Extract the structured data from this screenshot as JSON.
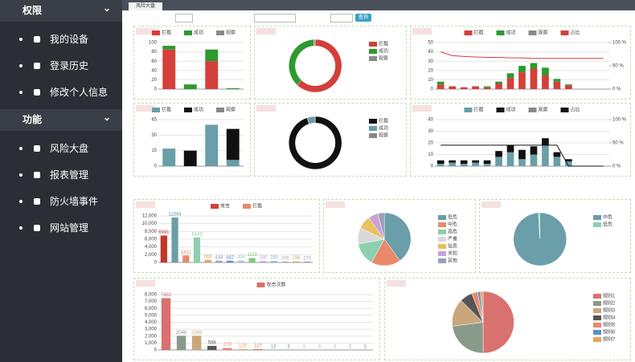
{
  "sidebar": {
    "sections": [
      {
        "title": "权限",
        "items": [
          "我的设备",
          "登录历史",
          "修改个人信息"
        ]
      },
      {
        "title": "功能",
        "items": [
          "风险大盘",
          "报表管理",
          "防火墙事件",
          "网站管理"
        ]
      }
    ]
  },
  "tab": "风险大盘",
  "toolbar": {
    "button": "查询"
  },
  "chart_data": [
    {
      "type": "bar",
      "categories": [
        null,
        null,
        null,
        null
      ],
      "series": [
        {
          "name": "拦截",
          "color": "#d43f3a",
          "values": [
            85,
            0,
            60,
            0
          ]
        },
        {
          "name": "成功",
          "color": "#2e9a2e",
          "values": [
            8,
            10,
            25,
            2
          ]
        },
        {
          "name": "观察",
          "color": "#888888",
          "values": [
            0,
            0,
            0,
            0
          ]
        }
      ],
      "ylim": [
        0,
        100
      ],
      "yticks": [
        0,
        20,
        40,
        60,
        80,
        100
      ]
    },
    {
      "type": "donut",
      "names": [
        "拦截",
        "成功",
        "观察"
      ],
      "colors": [
        "#d43f3a",
        "#2e9a2e",
        "#888888"
      ],
      "values": [
        62,
        37,
        1
      ]
    },
    {
      "type": "bar",
      "categories": [
        null,
        null,
        null,
        null,
        null,
        null,
        null,
        null,
        null,
        null,
        null,
        null,
        null,
        null,
        null
      ],
      "series": [
        {
          "name": "拦截",
          "color": "#d43f3a",
          "values": [
            5,
            3,
            2,
            3,
            2,
            6,
            12,
            18,
            22,
            15,
            8,
            4,
            0,
            0,
            0
          ]
        },
        {
          "name": "成功",
          "color": "#2e9a2e",
          "values": [
            3,
            0,
            0,
            0,
            1,
            2,
            5,
            7,
            6,
            8,
            3,
            1,
            0,
            0,
            0
          ]
        },
        {
          "name": "观察",
          "color": "#888888",
          "values": [
            0,
            0,
            0,
            0,
            0,
            0,
            0,
            0,
            0,
            0,
            0,
            0,
            0,
            0,
            0
          ]
        },
        {
          "name": "占比",
          "color": "#d43f3a",
          "axis": "y2",
          "values": [
            80,
            72,
            70,
            69,
            68,
            68,
            67,
            67,
            66,
            66,
            66,
            66,
            66,
            66,
            66
          ]
        }
      ],
      "ylim": [
        0,
        50
      ],
      "yticks": [
        0,
        10,
        20,
        30,
        40,
        50
      ],
      "y2lim": [
        0,
        100
      ],
      "y2ticks": [
        {
          "value": 0,
          "label": "0 %"
        },
        {
          "value": 50,
          "label": "50 %"
        },
        {
          "value": 100,
          "label": "100 %"
        }
      ]
    },
    {
      "type": "bar",
      "categories": [
        null,
        null,
        null,
        null
      ],
      "series": [
        {
          "name": "拦截",
          "color": "#6a9ea8",
          "values": [
            17,
            0,
            40,
            6
          ]
        },
        {
          "name": "成功",
          "color": "#111111",
          "values": [
            0,
            15,
            0,
            30
          ]
        },
        {
          "name": "观察",
          "color": "#888888",
          "values": [
            0,
            0,
            0,
            0
          ]
        }
      ],
      "ylim": [
        0,
        45
      ],
      "yticks": [
        0,
        15,
        30,
        45
      ]
    },
    {
      "type": "donut",
      "names": [
        "拦截",
        "成功",
        "观察"
      ],
      "colors": [
        "#111111",
        "#6a9ea8",
        "#888888"
      ],
      "values": [
        95,
        5,
        0
      ]
    },
    {
      "type": "bar",
      "categories": [
        null,
        null,
        null,
        null,
        null,
        null,
        null,
        null,
        null,
        null,
        null,
        null,
        null,
        null,
        null
      ],
      "series": [
        {
          "name": "拦截",
          "color": "#6a9ea8",
          "values": [
            2,
            3,
            2,
            3,
            2,
            8,
            12,
            6,
            10,
            18,
            8,
            4,
            0,
            0,
            0
          ]
        },
        {
          "name": "成功",
          "color": "#111111",
          "values": [
            3,
            2,
            3,
            2,
            3,
            5,
            6,
            8,
            7,
            6,
            4,
            2,
            0,
            0,
            0
          ]
        },
        {
          "name": "观察",
          "color": "#888888",
          "values": [
            0,
            0,
            0,
            0,
            0,
            0,
            0,
            0,
            0,
            0,
            0,
            0,
            0,
            0,
            0
          ]
        },
        {
          "name": "占比",
          "color": "#111111",
          "axis": "y2",
          "values": [
            45,
            45,
            45,
            45,
            45,
            45,
            45,
            45,
            45,
            45,
            45,
            0,
            0,
            0,
            0
          ]
        }
      ],
      "ylim": [
        0,
        40
      ],
      "yticks": [
        0,
        10,
        20,
        30,
        40
      ],
      "y2lim": [
        0,
        100
      ],
      "y2ticks": [
        {
          "value": 0,
          "label": "0 %"
        },
        {
          "value": 50,
          "label": "50 %"
        },
        {
          "value": 100,
          "label": "100 %"
        }
      ]
    },
    {
      "type": "bar",
      "categories": [
        null,
        null,
        null,
        null,
        null,
        null,
        null,
        null,
        null,
        null,
        null,
        null,
        null,
        null
      ],
      "legend": [
        {
          "name": "攻击",
          "color": "#d43f3a"
        },
        {
          "name": "拦截",
          "color": "#e8896a"
        }
      ],
      "colors": [
        "#c0392b",
        "#6a9ea8",
        "#e8896a",
        "#8ccfae",
        "#e8a35c",
        "#9aa0b8",
        "#5d8fc9",
        "#a8c6d8",
        "#7fc97f",
        "#c4a8d8",
        "#9ab0c0",
        "#b0b0b0",
        "#c0b080",
        "#a0a0c0"
      ],
      "values": [
        6941,
        11594,
        1811,
        6443,
        668,
        448,
        442,
        494,
        1119,
        380,
        380,
        266,
        296,
        270
      ],
      "ylim": [
        0,
        12000
      ],
      "yticks": [
        0,
        {
          "value": 2000,
          "label": "2,000"
        },
        {
          "value": 4000,
          "label": "4,000"
        },
        {
          "value": 6000,
          "label": "6,000"
        },
        {
          "value": 8000,
          "label": "8,000"
        },
        {
          "value": 10000,
          "label": "10,000"
        },
        {
          "value": 12000,
          "label": "12,000"
        }
      ]
    },
    {
      "type": "pie",
      "names": [
        "低危",
        "中危",
        "高危",
        "严重",
        "信息",
        "未知",
        "其他"
      ],
      "colors": [
        "#6a9ea8",
        "#e8896a",
        "#8ccfae",
        "#d9d9d9",
        "#e8c25c",
        "#c9a0d8",
        "#9aa0b8"
      ],
      "values": [
        40,
        18,
        14,
        10,
        8,
        6,
        4
      ]
    },
    {
      "type": "pie",
      "names": [
        "中危",
        "低危"
      ],
      "colors": [
        "#6a9ea8",
        "#8ccfae"
      ],
      "values": [
        99,
        1
      ]
    },
    {
      "type": "bar",
      "categories": [
        null,
        null,
        null,
        null,
        null,
        null,
        null,
        null,
        null,
        null,
        null,
        null,
        null,
        null
      ],
      "legend": [
        {
          "name": "攻击次数",
          "color": "#d9716e"
        }
      ],
      "colors": [
        "#d9716e",
        "#8a9a8a",
        "#c9a77a",
        "#555555",
        "#e8896a",
        "#e8a35c",
        "#d9716e",
        "#6a9ea8",
        "#5d8fc9",
        "#8ccfae",
        "#7fc97f",
        "#c4a8d8",
        "#6a9ea8",
        "#888888"
      ],
      "values": [
        7482,
        2046,
        2059,
        588,
        279,
        129,
        127,
        13,
        3,
        3,
        3,
        3,
        2,
        1
      ],
      "ylim": [
        0,
        8000
      ],
      "yticks": [
        0,
        {
          "value": 1000,
          "label": "1,000"
        },
        {
          "value": 2000,
          "label": "2,000"
        },
        {
          "value": 3000,
          "label": "3,000"
        },
        {
          "value": 4000,
          "label": "4,000"
        },
        {
          "value": 5000,
          "label": "5,000"
        },
        {
          "value": 6000,
          "label": "6,000"
        },
        {
          "value": 7000,
          "label": "7,000"
        },
        {
          "value": 8000,
          "label": "8,000"
        }
      ]
    },
    {
      "type": "pie",
      "names": [
        "规则1",
        "规则2",
        "规则3",
        "规则4",
        "规则5",
        "规则6",
        "规则7"
      ],
      "colors": [
        "#d9716e",
        "#8a9a8a",
        "#c9a77a",
        "#555555",
        "#e8896a",
        "#5d8fc9",
        "#e8a35c"
      ],
      "values": [
        4482,
        2059,
        1300,
        588,
        279,
        129,
        127
      ]
    }
  ]
}
